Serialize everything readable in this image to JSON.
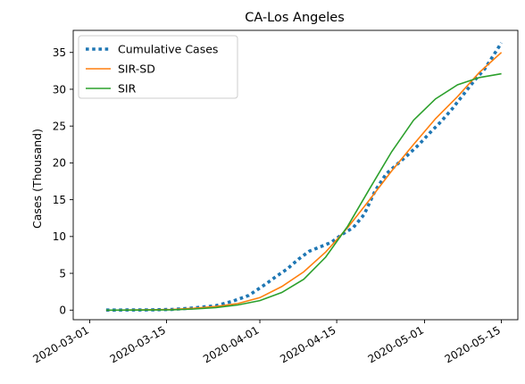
{
  "chart_data": {
    "type": "line",
    "title": "CA-Los Angeles",
    "xlabel": "",
    "ylabel": "Cases (Thousand)",
    "x_type": "date",
    "xlim": [
      "2020-02-27",
      "2020-05-18"
    ],
    "ylim": [
      -1.3,
      38
    ],
    "x_ticks": [
      "2020-03-01",
      "2020-03-15",
      "2020-04-01",
      "2020-04-15",
      "2020-05-01",
      "2020-05-15"
    ],
    "y_ticks": [
      0,
      5,
      10,
      15,
      20,
      25,
      30,
      35
    ],
    "grid": false,
    "legend_position": "top-left",
    "series": [
      {
        "name": "Cumulative Cases",
        "color": "#1f77b4",
        "style": "dotted",
        "x": [
          "2020-03-04",
          "2020-03-08",
          "2020-03-12",
          "2020-03-16",
          "2020-03-20",
          "2020-03-24",
          "2020-03-27",
          "2020-03-30",
          "2020-04-02",
          "2020-04-04",
          "2020-04-06",
          "2020-04-08",
          "2020-04-10",
          "2020-04-12",
          "2020-04-14",
          "2020-04-16",
          "2020-04-18",
          "2020-04-20",
          "2020-04-22",
          "2020-04-24",
          "2020-04-26",
          "2020-04-28",
          "2020-04-30",
          "2020-05-02",
          "2020-05-04",
          "2020-05-06",
          "2020-05-08",
          "2020-05-10",
          "2020-05-12",
          "2020-05-15"
        ],
        "y": [
          0.01,
          0.02,
          0.03,
          0.1,
          0.3,
          0.6,
          1.2,
          2.0,
          3.5,
          4.6,
          5.6,
          6.9,
          8.0,
          8.6,
          9.2,
          10.3,
          11.2,
          13.0,
          16.2,
          18.5,
          19.8,
          21.1,
          22.5,
          24.1,
          25.6,
          27.3,
          29.2,
          31.1,
          32.8,
          36.3
        ]
      },
      {
        "name": "SIR-SD",
        "color": "#ff7f0e",
        "style": "solid",
        "x": [
          "2020-03-04",
          "2020-03-10",
          "2020-03-16",
          "2020-03-20",
          "2020-03-24",
          "2020-03-28",
          "2020-04-01",
          "2020-04-05",
          "2020-04-09",
          "2020-04-13",
          "2020-04-17",
          "2020-04-21",
          "2020-04-25",
          "2020-04-29",
          "2020-05-03",
          "2020-05-07",
          "2020-05-11",
          "2020-05-15"
        ],
        "y": [
          0.0,
          0.02,
          0.1,
          0.25,
          0.5,
          0.9,
          1.7,
          3.2,
          5.2,
          7.9,
          11.2,
          15.0,
          18.9,
          22.5,
          26.0,
          29.0,
          32.3,
          35.0
        ]
      },
      {
        "name": "SIR",
        "color": "#2ca02c",
        "style": "solid",
        "x": [
          "2020-03-04",
          "2020-03-10",
          "2020-03-16",
          "2020-03-20",
          "2020-03-24",
          "2020-03-28",
          "2020-04-01",
          "2020-04-05",
          "2020-04-09",
          "2020-04-13",
          "2020-04-17",
          "2020-04-21",
          "2020-04-25",
          "2020-04-29",
          "2020-05-03",
          "2020-05-07",
          "2020-05-11",
          "2020-05-15"
        ],
        "y": [
          0.0,
          0.01,
          0.05,
          0.15,
          0.35,
          0.7,
          1.3,
          2.4,
          4.2,
          7.2,
          11.4,
          16.5,
          21.5,
          25.8,
          28.7,
          30.6,
          31.6,
          32.1
        ]
      }
    ]
  }
}
